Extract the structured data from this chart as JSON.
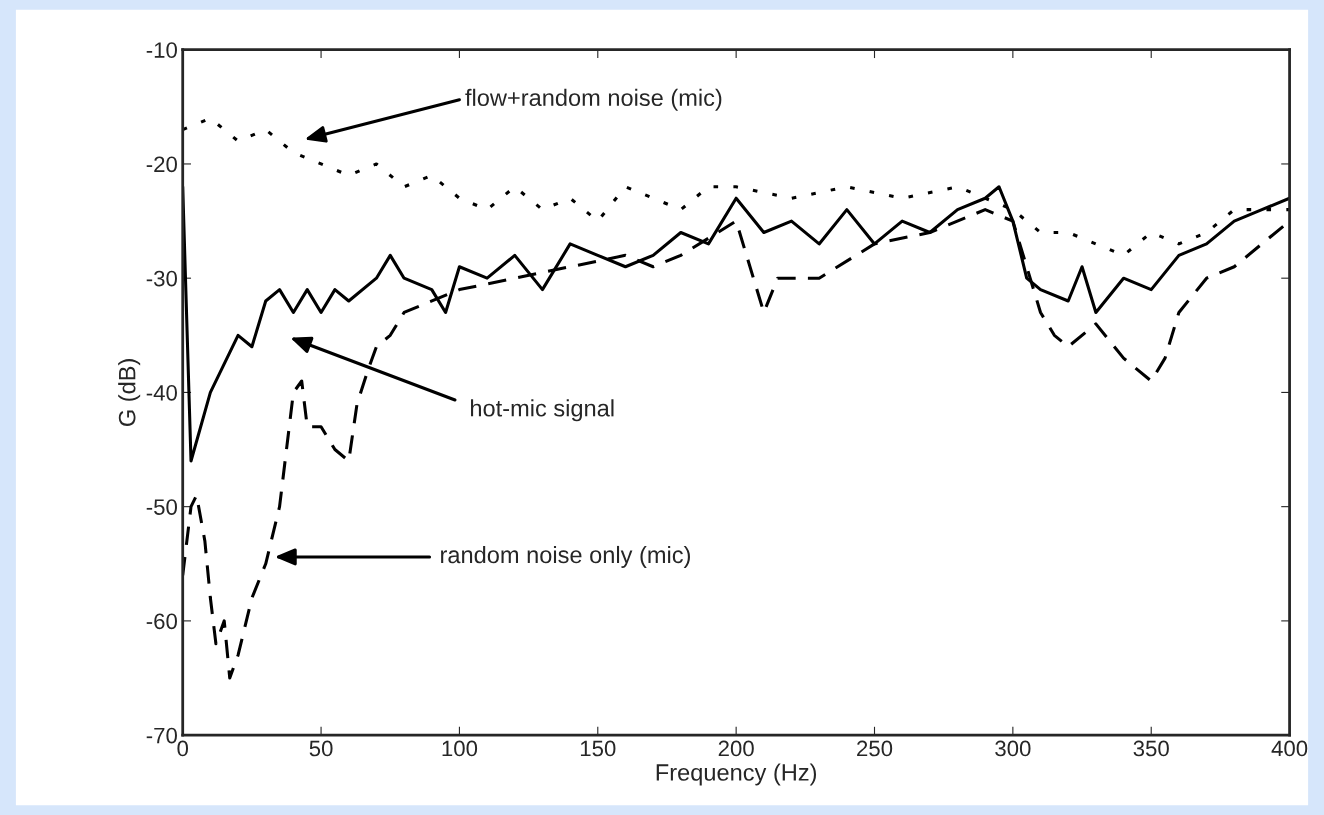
{
  "chart_data": {
    "type": "line",
    "xlabel": "Frequency (Hz)",
    "ylabel": "G (dB)",
    "xlim": [
      0,
      400
    ],
    "ylim": [
      -70,
      -10
    ],
    "xticks": [
      0,
      50,
      100,
      150,
      200,
      250,
      300,
      350,
      400
    ],
    "yticks": [
      -70,
      -60,
      -50,
      -40,
      -30,
      -20,
      -10
    ],
    "grid": false,
    "legend": false,
    "marker": "none",
    "series": [
      {
        "color": "#000000",
        "line_style": "dotted",
        "x": [
          0,
          10,
          20,
          30,
          40,
          50,
          60,
          70,
          80,
          90,
          100,
          110,
          120,
          130,
          140,
          150,
          160,
          170,
          180,
          190,
          200,
          220,
          240,
          260,
          280,
          300,
          310,
          320,
          330,
          340,
          350,
          360,
          370,
          380,
          390,
          400
        ],
        "values": [
          -17,
          -16,
          -18,
          -17,
          -19,
          -20,
          -21,
          -20,
          -22,
          -21,
          -23,
          -24,
          -22,
          -24,
          -23,
          -25,
          -22,
          -23,
          -24,
          -22,
          -22,
          -23,
          -22,
          -23,
          -22,
          -24,
          -26,
          -26,
          -27,
          -28,
          -26,
          -27,
          -26,
          -24,
          -24,
          -24
        ]
      },
      {
        "color": "#000000",
        "line_style": "solid",
        "x": [
          0,
          3,
          10,
          20,
          25,
          30,
          35,
          40,
          45,
          50,
          55,
          60,
          70,
          75,
          80,
          90,
          95,
          100,
          110,
          120,
          130,
          140,
          150,
          160,
          170,
          180,
          190,
          200,
          210,
          220,
          230,
          240,
          250,
          260,
          270,
          280,
          290,
          295,
          300,
          305,
          310,
          320,
          325,
          330,
          340,
          350,
          360,
          370,
          380,
          390,
          400
        ],
        "values": [
          -22,
          -46,
          -40,
          -35,
          -36,
          -32,
          -31,
          -33,
          -31,
          -33,
          -31,
          -32,
          -30,
          -28,
          -30,
          -31,
          -33,
          -29,
          -30,
          -28,
          -31,
          -27,
          -28,
          -29,
          -28,
          -26,
          -27,
          -23,
          -26,
          -25,
          -27,
          -24,
          -27,
          -25,
          -26,
          -24,
          -23,
          -22,
          -25,
          -30,
          -31,
          -32,
          -29,
          -33,
          -30,
          -31,
          -28,
          -27,
          -25,
          -24,
          -23
        ]
      },
      {
        "color": "#000000",
        "line_style": "dashed",
        "x": [
          0,
          3,
          5,
          8,
          10,
          12,
          15,
          17,
          20,
          25,
          30,
          35,
          40,
          43,
          45,
          50,
          55,
          60,
          63,
          67,
          70,
          75,
          80,
          100,
          120,
          140,
          160,
          170,
          180,
          200,
          210,
          215,
          230,
          250,
          270,
          290,
          300,
          310,
          315,
          320,
          330,
          340,
          345,
          350,
          355,
          360,
          370,
          380,
          390,
          400
        ],
        "values": [
          -56,
          -50,
          -49,
          -53,
          -58,
          -62,
          -60,
          -65,
          -63,
          -58,
          -55,
          -50,
          -40,
          -39,
          -43,
          -43,
          -45,
          -46,
          -41,
          -38,
          -36,
          -35,
          -33,
          -31,
          -30,
          -29,
          -28,
          -29,
          -28,
          -25,
          -33,
          -30,
          -30,
          -27,
          -26,
          -24,
          -25,
          -33,
          -35,
          -36,
          -34,
          -37,
          -38,
          -39,
          -37,
          -33,
          -30,
          -29,
          -27,
          -25
        ]
      }
    ],
    "annotations": [
      "flow+random noise (mic)",
      "hot-mic signal",
      "random noise only (mic)"
    ]
  }
}
